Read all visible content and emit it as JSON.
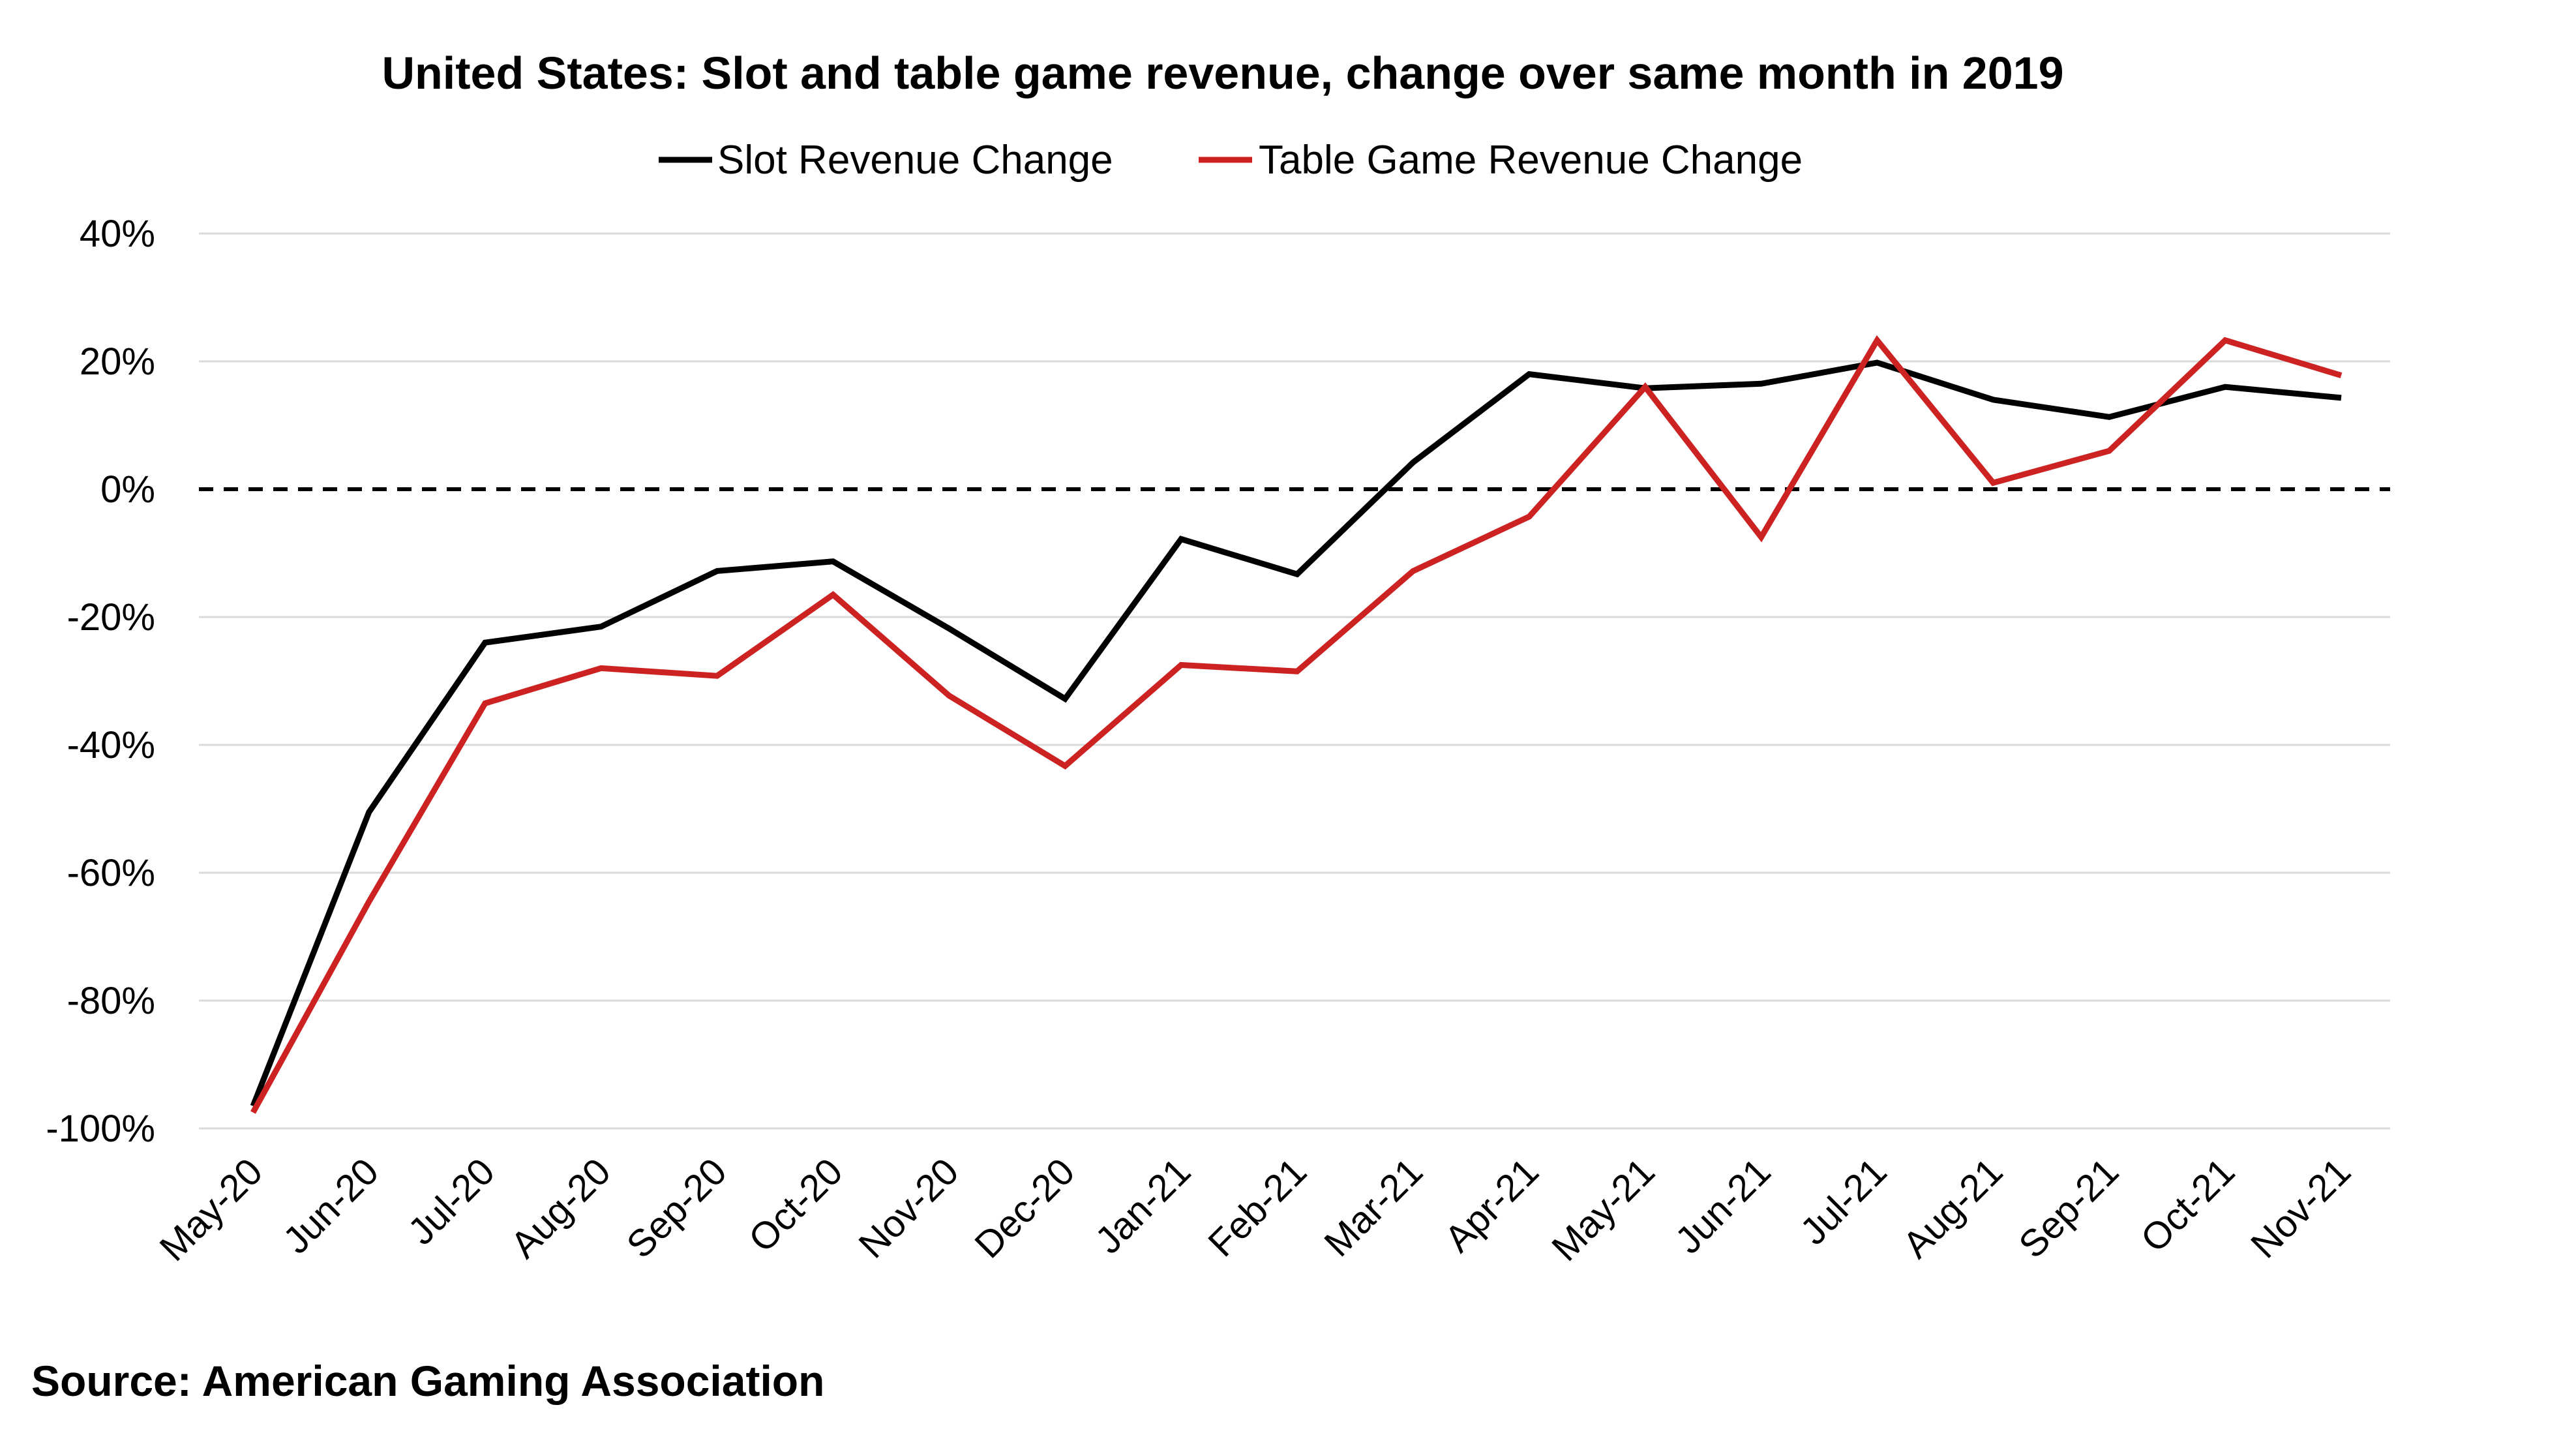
{
  "chart_data": {
    "type": "line",
    "title": "United States: Slot and table game revenue, change over same month in 2019",
    "xlabel": "",
    "ylabel": "",
    "categories": [
      "May-20",
      "Jun-20",
      "Jul-20",
      "Aug-20",
      "Sep-20",
      "Oct-20",
      "Nov-20",
      "Dec-20",
      "Jan-21",
      "Feb-21",
      "Mar-21",
      "Apr-21",
      "May-21",
      "Jun-21",
      "Jul-21",
      "Aug-21",
      "Sep-21",
      "Oct-21",
      "Nov-21"
    ],
    "ylim": [
      -100,
      40
    ],
    "yticks": [
      40,
      20,
      0,
      -20,
      -40,
      -60,
      -80,
      -100
    ],
    "ytick_labels": [
      "40%",
      "20%",
      "0%",
      "-20%",
      "-40%",
      "-60%",
      "-80%",
      "-100%"
    ],
    "grid": true,
    "zero_line": "dashed",
    "legend_position": "top-center",
    "series": [
      {
        "name": "Slot Revenue Change",
        "color": "#000000",
        "values": [
          -96.5,
          -50.5,
          -24.0,
          -21.5,
          -12.8,
          -11.3,
          -21.8,
          -32.8,
          -7.8,
          -13.3,
          4.2,
          18.0,
          15.8,
          16.5,
          19.8,
          14.0,
          11.3,
          16.0,
          14.3
        ]
      },
      {
        "name": "Table Game Revenue Change",
        "color": "#cc2222",
        "values": [
          -97.5,
          -64.5,
          -33.5,
          -28.0,
          -29.2,
          -16.5,
          -32.3,
          -43.3,
          -27.5,
          -28.5,
          -12.8,
          -4.3,
          16.0,
          -7.5,
          23.3,
          1.0,
          6.0,
          23.3,
          17.8
        ]
      }
    ]
  },
  "source": "Source: American Gaming Association"
}
